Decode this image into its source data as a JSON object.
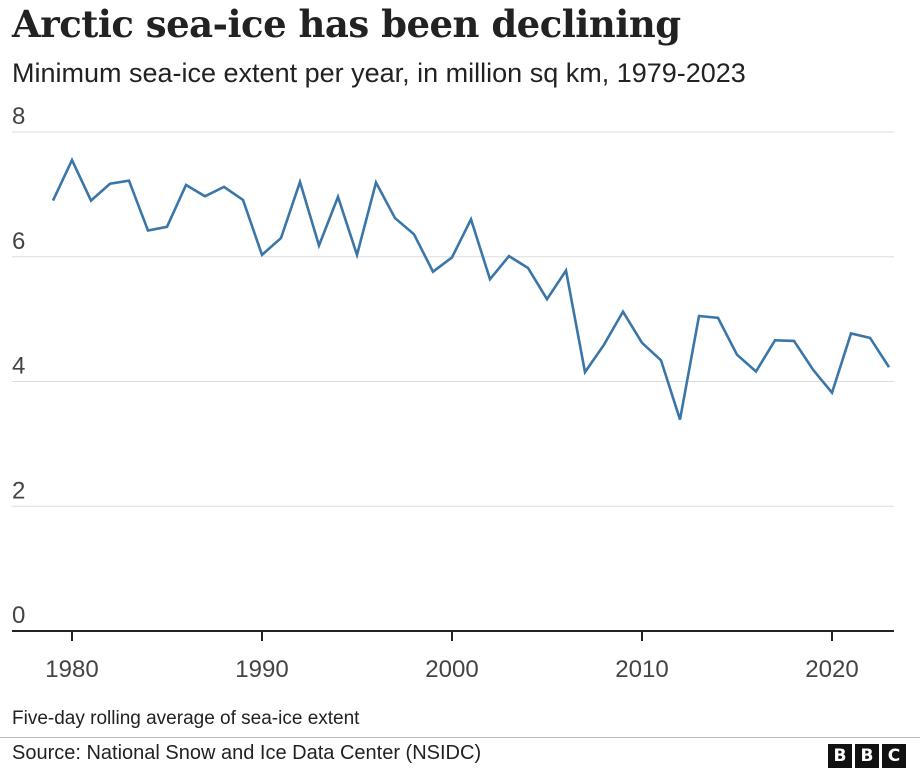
{
  "header": {
    "title": "Arctic sea-ice has been declining",
    "subtitle": "Minimum sea-ice extent per year, in million sq km, 1979-2023"
  },
  "footer": {
    "note": "Five-day rolling average of sea-ice extent",
    "source": "Source: National Snow and Ice Data Center (NSIDC)",
    "logo_letters": [
      "B",
      "B",
      "C"
    ]
  },
  "colors": {
    "line": "#3a76a8",
    "grid": "#dddddd",
    "axis": "#222222",
    "text": "#222222",
    "logo_bg": "#111111"
  },
  "chart_data": {
    "type": "line",
    "title": "Arctic sea-ice has been declining",
    "subtitle": "Minimum sea-ice extent per year, in million sq km, 1979-2023",
    "xlabel": "",
    "ylabel": "",
    "xlim": [
      1979,
      2023
    ],
    "ylim": [
      0,
      8
    ],
    "xticks": [
      1980,
      1990,
      2000,
      2010,
      2020
    ],
    "yticks": [
      0,
      2,
      4,
      6,
      8
    ],
    "grid": true,
    "series": [
      {
        "name": "Minimum sea-ice extent",
        "x": [
          1979,
          1980,
          1981,
          1982,
          1983,
          1984,
          1985,
          1986,
          1987,
          1988,
          1989,
          1990,
          1991,
          1992,
          1993,
          1994,
          1995,
          1996,
          1997,
          1998,
          1999,
          2000,
          2001,
          2002,
          2003,
          2004,
          2005,
          2006,
          2007,
          2008,
          2009,
          2010,
          2011,
          2012,
          2013,
          2014,
          2015,
          2016,
          2017,
          2018,
          2019,
          2020,
          2021,
          2022,
          2023
        ],
        "values": [
          6.9,
          7.55,
          6.9,
          7.17,
          7.22,
          6.42,
          6.48,
          7.15,
          6.97,
          7.12,
          6.91,
          6.03,
          6.3,
          7.2,
          6.18,
          6.96,
          6.03,
          7.19,
          6.62,
          6.36,
          5.76,
          5.99,
          6.6,
          5.64,
          6.01,
          5.82,
          5.32,
          5.78,
          4.15,
          4.59,
          5.12,
          4.62,
          4.34,
          3.39,
          5.05,
          5.02,
          4.43,
          4.16,
          4.66,
          4.65,
          4.19,
          3.82,
          4.77,
          4.7,
          4.23
        ]
      }
    ]
  }
}
